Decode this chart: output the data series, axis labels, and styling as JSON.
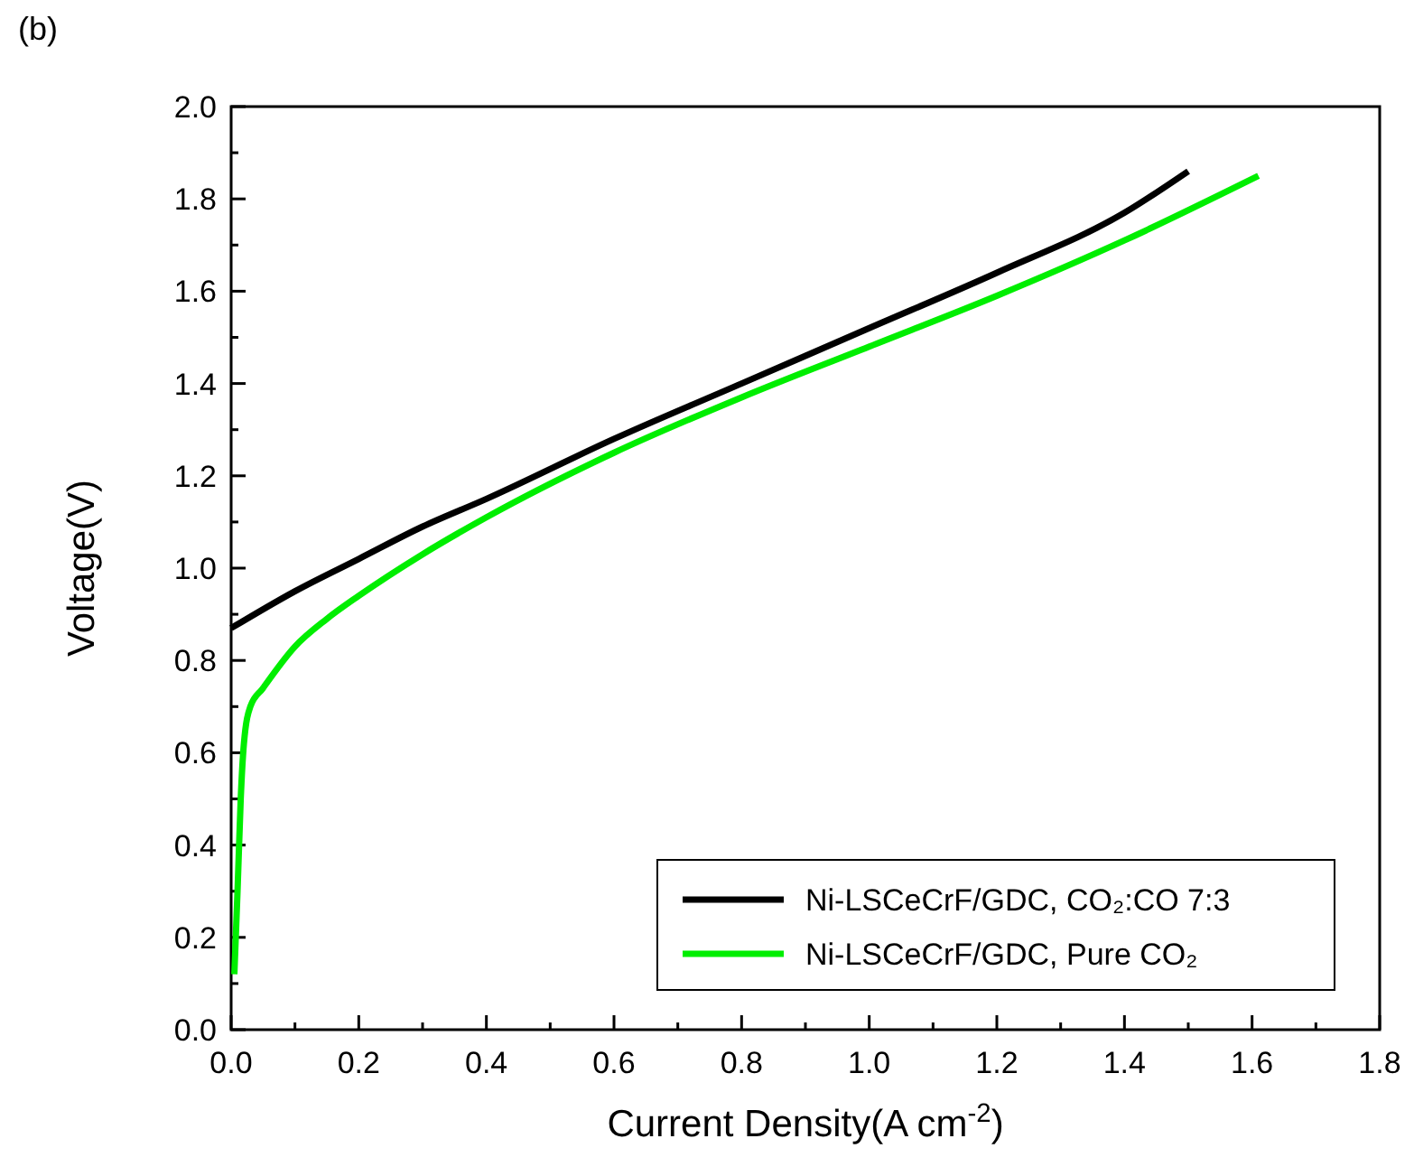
{
  "chart_data": {
    "type": "line",
    "xlabel": "Current Density(A cm$^{-2}$)",
    "ylabel": "Voltage(V)",
    "annotations": [
      "(b)"
    ],
    "xlim": [
      0,
      1.8
    ],
    "ylim": [
      0,
      2.0
    ],
    "xticks": [
      {
        "value": 0,
        "label": "0.0"
      },
      {
        "value": 0.1,
        "label": null
      },
      {
        "value": 0.2,
        "label": "0.2"
      },
      {
        "value": 0.3,
        "label": null
      },
      {
        "value": 0.4,
        "label": "0.4"
      },
      {
        "value": 0.5,
        "label": null
      },
      {
        "value": 0.6,
        "label": "0.6"
      },
      {
        "value": 0.7,
        "label": null
      },
      {
        "value": 0.8,
        "label": "0.8"
      },
      {
        "value": 0.9,
        "label": null
      },
      {
        "value": 1,
        "label": "1.0"
      },
      {
        "value": 1.1,
        "label": null
      },
      {
        "value": 1.2,
        "label": "1.2"
      },
      {
        "value": 1.3,
        "label": null
      },
      {
        "value": 1.4,
        "label": "1.4"
      },
      {
        "value": 1.5,
        "label": null
      },
      {
        "value": 1.6,
        "label": "1.6"
      },
      {
        "value": 1.7,
        "label": null
      },
      {
        "value": 1.8,
        "label": "1.8"
      }
    ],
    "yticks": [
      {
        "value": 0,
        "label": "0.0"
      },
      {
        "value": 0.1,
        "label": null
      },
      {
        "value": 0.2,
        "label": "0.2"
      },
      {
        "value": 0.3,
        "label": null
      },
      {
        "value": 0.4,
        "label": "0.4"
      },
      {
        "value": 0.5,
        "label": null
      },
      {
        "value": 0.6,
        "label": "0.6"
      },
      {
        "value": 0.7,
        "label": null
      },
      {
        "value": 0.8,
        "label": "0.8"
      },
      {
        "value": 0.9,
        "label": null
      },
      {
        "value": 1,
        "label": "1.0"
      },
      {
        "value": 1.1,
        "label": null
      },
      {
        "value": 1.2,
        "label": "1.2"
      },
      {
        "value": 1.3,
        "label": null
      },
      {
        "value": 1.4,
        "label": "1.4"
      },
      {
        "value": 1.5,
        "label": null
      },
      {
        "value": 1.6,
        "label": "1.6"
      },
      {
        "value": 1.7,
        "label": null
      },
      {
        "value": 1.8,
        "label": "1.8"
      },
      {
        "value": 1.9,
        "label": null
      },
      {
        "value": 2,
        "label": "2.0"
      }
    ],
    "grid": false,
    "legend": "bottom right",
    "marker": "none",
    "line_style": "solid",
    "series": [
      {
        "name": "Ni-LSCeCrF/GDC, CO₂:CO 7:3",
        "color": "#000000",
        "x": [
          0,
          0.1,
          0.2,
          0.3,
          0.4,
          0.6,
          0.8,
          1.0,
          1.2,
          1.4,
          1.5
        ],
        "values": [
          0.87,
          0.95,
          1.02,
          1.09,
          1.15,
          1.28,
          1.4,
          1.52,
          1.64,
          1.77,
          1.86
        ]
      },
      {
        "name": "Ni-LSCeCrF/GDC, Pure CO₂",
        "color": "#00ee00",
        "x": [
          0.005,
          0.01,
          0.015,
          0.02,
          0.03,
          0.05,
          0.1,
          0.15,
          0.2,
          0.3,
          0.4,
          0.6,
          0.8,
          1.0,
          1.2,
          1.4,
          1.61
        ],
        "values": [
          0.12,
          0.3,
          0.5,
          0.62,
          0.7,
          0.74,
          0.83,
          0.89,
          0.94,
          1.03,
          1.11,
          1.25,
          1.37,
          1.48,
          1.59,
          1.71,
          1.85
        ]
      }
    ]
  }
}
